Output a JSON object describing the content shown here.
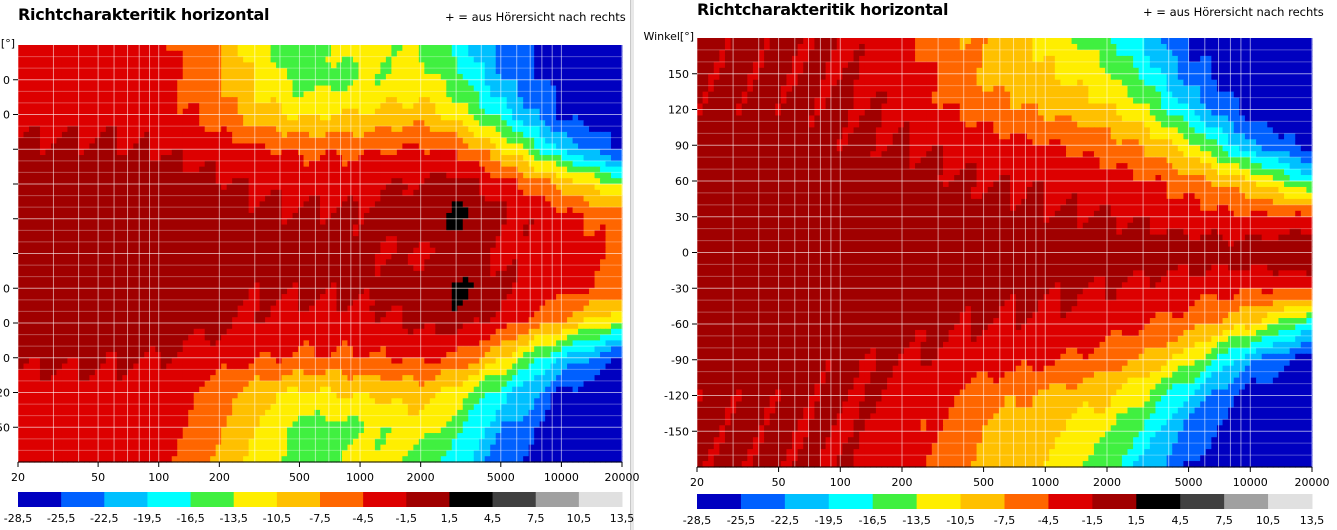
{
  "panels": [
    {
      "title": "Richtcharakteritik horizontal",
      "note": "+ = aus Hörersicht nach rechts",
      "ylabel": "[°]",
      "ytick_labels": [
        "0",
        "0",
        "",
        "",
        "",
        "",
        "0",
        "0",
        "0",
        "20",
        "50"
      ]
    },
    {
      "title": "Richtcharakteritik horizontal",
      "note": "+ = aus Hörersicht nach rechts",
      "ylabel": "Winkel[°]",
      "ytick_labels": [
        "150",
        "120",
        "90",
        "60",
        "30",
        "0",
        "-30",
        "-60",
        "-90",
        "-120",
        "-150"
      ]
    }
  ],
  "chart_data": [
    {
      "type": "heatmap",
      "title": "Richtcharakteritik horizontal",
      "xscale": "log",
      "xlim": [
        20,
        20000
      ],
      "ylim": [
        -180,
        180
      ],
      "xtick_labels": [
        "20",
        "50",
        "100",
        "200",
        "500",
        "1000",
        "2000",
        "5000",
        "10000",
        "20000"
      ],
      "frequencies": [
        20,
        50,
        100,
        200,
        300,
        500,
        1000,
        2000,
        3000,
        5000,
        10000,
        20000
      ],
      "angles": [
        180,
        150,
        120,
        90,
        60,
        30,
        0,
        -30,
        -60,
        -90,
        -120,
        -150,
        -180
      ],
      "values_db": [
        [
          -3,
          -3,
          -3.5,
          -8,
          -12,
          -15,
          -12,
          -14,
          -18,
          -24,
          -27,
          -28
        ],
        [
          -3,
          -3,
          -3,
          -7,
          -11,
          -15,
          -14,
          -12,
          -15,
          -22,
          -27,
          -28
        ],
        [
          -2.5,
          -2.5,
          -3,
          -6,
          -9,
          -11,
          -10,
          -9,
          -12,
          -18,
          -26,
          -28
        ],
        [
          -1,
          -1,
          -1.5,
          -3,
          -4,
          -5,
          -5,
          -4,
          -5,
          -10,
          -20,
          -26
        ],
        [
          0,
          0,
          0,
          -1,
          -2,
          -2.5,
          -2.5,
          -1,
          0,
          -3,
          -8,
          -14
        ],
        [
          0,
          0,
          0,
          0,
          -1,
          -1,
          -1,
          0,
          2.5,
          -1,
          -3,
          -6
        ],
        [
          0,
          0,
          0,
          0,
          0,
          0,
          -1,
          -2,
          -1,
          -2,
          -3,
          -5
        ],
        [
          0,
          0,
          0,
          0,
          -1,
          -1,
          -1,
          0,
          2.5,
          -1,
          -3,
          -6
        ],
        [
          0,
          0,
          0,
          -1,
          -2,
          -2.5,
          -2.5,
          -1,
          0,
          -3,
          -8,
          -14
        ],
        [
          -1,
          -1,
          -1.5,
          -3,
          -4,
          -5,
          -5,
          -4,
          -5,
          -10,
          -20,
          -26
        ],
        [
          -2.5,
          -2.5,
          -3,
          -6,
          -9,
          -11,
          -10,
          -9,
          -12,
          -18,
          -26,
          -28
        ],
        [
          -3,
          -3,
          -3,
          -7,
          -11,
          -15,
          -14,
          -12,
          -15,
          -22,
          -27,
          -28
        ],
        [
          -3,
          -3,
          -3.5,
          -8,
          -12,
          -15,
          -12,
          -14,
          -18,
          -24,
          -27,
          -28
        ]
      ]
    },
    {
      "type": "heatmap",
      "title": "Richtcharakteritik horizontal",
      "xscale": "log",
      "xlim": [
        20,
        20000
      ],
      "ylim": [
        -180,
        180
      ],
      "ylabel": "Winkel[°]",
      "xtick_labels": [
        "20",
        "50",
        "100",
        "200",
        "500",
        "1000",
        "2000",
        "5000",
        "10000",
        "20000"
      ],
      "frequencies": [
        20,
        50,
        100,
        200,
        300,
        500,
        1000,
        2000,
        3000,
        5000,
        10000,
        20000
      ],
      "angles": [
        180,
        150,
        120,
        90,
        60,
        30,
        0,
        -30,
        -60,
        -90,
        -120,
        -150,
        -180
      ],
      "values_db": [
        [
          -1,
          -1,
          -1.5,
          -3,
          -6,
          -8,
          -11,
          -16,
          -20,
          -26,
          -28,
          -28
        ],
        [
          -1,
          -1,
          -1.5,
          -3,
          -5,
          -8,
          -10,
          -13,
          -17,
          -24,
          -28,
          -28
        ],
        [
          -1,
          -1,
          -1,
          -2,
          -4,
          -6,
          -8,
          -10,
          -13,
          -20,
          -27,
          -28
        ],
        [
          -0.5,
          -0.5,
          -1,
          -1.5,
          -2,
          -3,
          -4,
          -6,
          -8,
          -12,
          -22,
          -27
        ],
        [
          0,
          0,
          0,
          -0.5,
          -1,
          -1.5,
          -2,
          -3,
          -4,
          -6,
          -10,
          -18
        ],
        [
          0,
          0,
          0,
          0,
          0,
          -0.5,
          -1,
          -1.5,
          -2,
          -3,
          -4,
          -4
        ],
        [
          0,
          0,
          0,
          0,
          0,
          0,
          0,
          0,
          0,
          0,
          0,
          2
        ],
        [
          0,
          0,
          0,
          0,
          0,
          -0.5,
          -1,
          -1.5,
          -2,
          -3,
          -4,
          -4
        ],
        [
          0,
          0,
          0,
          -0.5,
          -1,
          -1.5,
          -2,
          -3,
          -4,
          -6,
          -10,
          -18
        ],
        [
          -0.5,
          -0.5,
          -1,
          -1.5,
          -2,
          -3,
          -4,
          -6,
          -8,
          -12,
          -22,
          -27
        ],
        [
          -1,
          -1,
          -1,
          -2,
          -4,
          -6,
          -8,
          -10,
          -13,
          -20,
          -27,
          -28
        ],
        [
          -1,
          -1,
          -1.5,
          -3,
          -5,
          -8,
          -10,
          -13,
          -17,
          -24,
          -28,
          -28
        ],
        [
          -1,
          -1,
          -1.5,
          -3,
          -6,
          -8,
          -11,
          -16,
          -20,
          -26,
          -28,
          -28
        ]
      ]
    }
  ],
  "colorscale": {
    "labels": [
      "-28,5",
      "-25,5",
      "-22,5",
      "-19,5",
      "-16,5",
      "-13,5",
      "-10,5",
      "-7,5",
      "-4,5",
      "-1,5",
      "1,5",
      "4,5",
      "7,5",
      "10,5",
      "13,5"
    ],
    "edges": [
      -28.5,
      -25.5,
      -22.5,
      -19.5,
      -16.5,
      -13.5,
      -10.5,
      -7.5,
      -4.5,
      -1.5,
      1.5,
      4.5,
      7.5,
      10.5,
      13.5
    ],
    "colors": [
      "#0000c0",
      "#0060ff",
      "#00c0ff",
      "#00ffff",
      "#40f040",
      "#ffee00",
      "#ffc000",
      "#ff6600",
      "#dd0000",
      "#a00000",
      "#000000",
      "#404040",
      "#a0a0a0",
      "#e0e0e0"
    ]
  }
}
